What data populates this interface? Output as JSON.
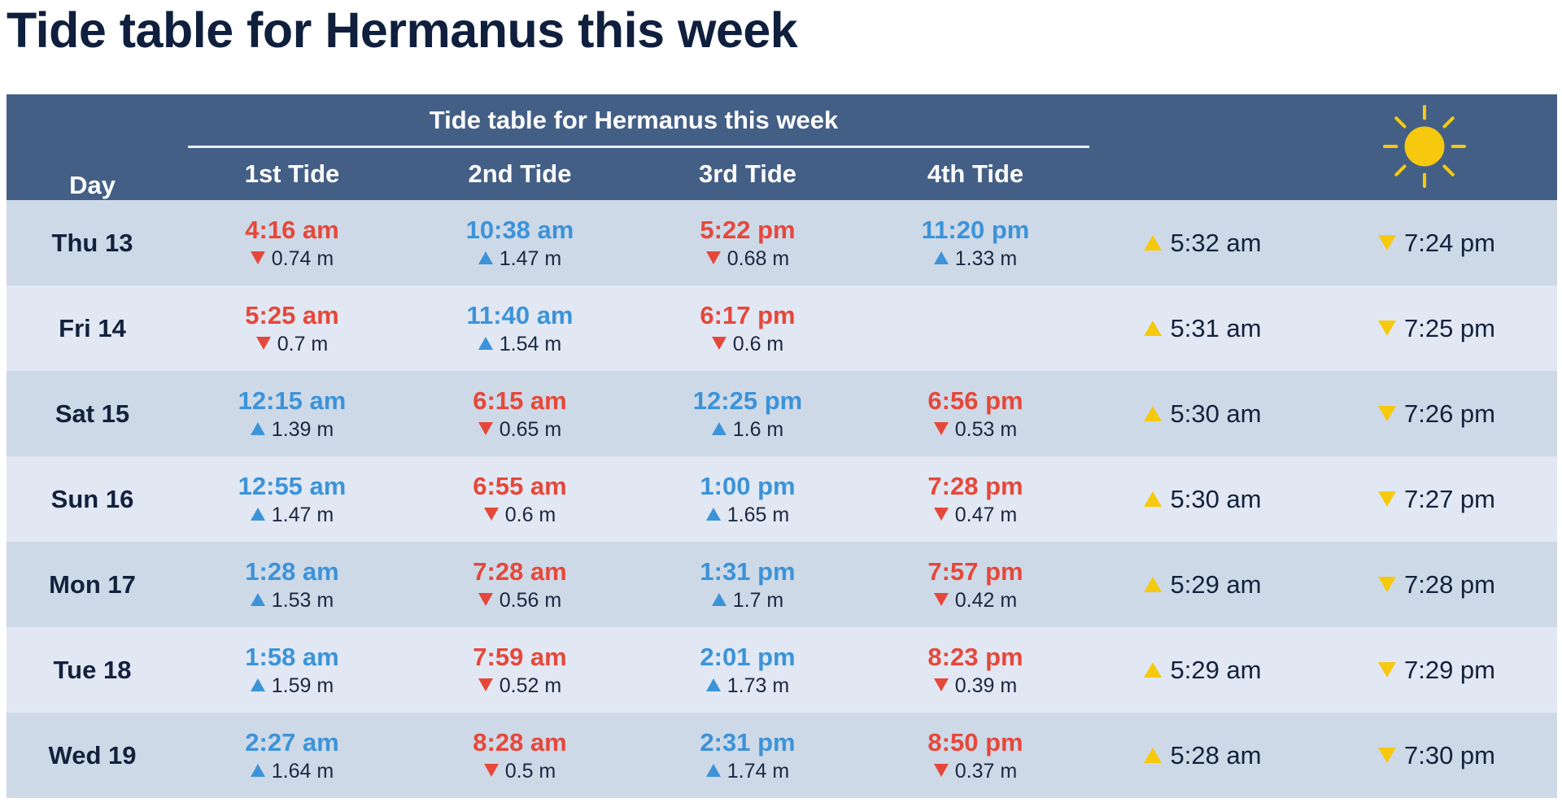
{
  "page": {
    "title": "Tide table for Hermanus this week"
  },
  "table": {
    "caption": "Tide table for Hermanus this week",
    "headers": {
      "day": "Day",
      "tides": [
        "1st Tide",
        "2nd Tide",
        "3rd Tide",
        "4th Tide"
      ]
    },
    "sun_icon": "sun-icon",
    "colors": {
      "header_bg": "#445f86",
      "high_tide": "#3c93d8",
      "low_tide": "#e5483a",
      "sun": "#f6c90e",
      "row_odd": "#ced9e8",
      "row_even": "#e1e8f3"
    },
    "rows": [
      {
        "day": "Thu 13",
        "tides": [
          {
            "time": "4:16 am",
            "height": "0.74 m",
            "type": "low"
          },
          {
            "time": "10:38 am",
            "height": "1.47 m",
            "type": "high"
          },
          {
            "time": "5:22 pm",
            "height": "0.68 m",
            "type": "low"
          },
          {
            "time": "11:20 pm",
            "height": "1.33 m",
            "type": "high"
          }
        ],
        "sunrise": "5:32 am",
        "sunset": "7:24 pm"
      },
      {
        "day": "Fri 14",
        "tides": [
          {
            "time": "5:25 am",
            "height": "0.7 m",
            "type": "low"
          },
          {
            "time": "11:40 am",
            "height": "1.54 m",
            "type": "high"
          },
          {
            "time": "6:17 pm",
            "height": "0.6 m",
            "type": "low"
          },
          null
        ],
        "sunrise": "5:31 am",
        "sunset": "7:25 pm"
      },
      {
        "day": "Sat 15",
        "tides": [
          {
            "time": "12:15 am",
            "height": "1.39 m",
            "type": "high"
          },
          {
            "time": "6:15 am",
            "height": "0.65 m",
            "type": "low"
          },
          {
            "time": "12:25 pm",
            "height": "1.6 m",
            "type": "high"
          },
          {
            "time": "6:56 pm",
            "height": "0.53 m",
            "type": "low"
          }
        ],
        "sunrise": "5:30 am",
        "sunset": "7:26 pm"
      },
      {
        "day": "Sun 16",
        "tides": [
          {
            "time": "12:55 am",
            "height": "1.47 m",
            "type": "high"
          },
          {
            "time": "6:55 am",
            "height": "0.6 m",
            "type": "low"
          },
          {
            "time": "1:00 pm",
            "height": "1.65 m",
            "type": "high"
          },
          {
            "time": "7:28 pm",
            "height": "0.47 m",
            "type": "low"
          }
        ],
        "sunrise": "5:30 am",
        "sunset": "7:27 pm"
      },
      {
        "day": "Mon 17",
        "tides": [
          {
            "time": "1:28 am",
            "height": "1.53 m",
            "type": "high"
          },
          {
            "time": "7:28 am",
            "height": "0.56 m",
            "type": "low"
          },
          {
            "time": "1:31 pm",
            "height": "1.7 m",
            "type": "high"
          },
          {
            "time": "7:57 pm",
            "height": "0.42 m",
            "type": "low"
          }
        ],
        "sunrise": "5:29 am",
        "sunset": "7:28 pm"
      },
      {
        "day": "Tue 18",
        "tides": [
          {
            "time": "1:58 am",
            "height": "1.59 m",
            "type": "high"
          },
          {
            "time": "7:59 am",
            "height": "0.52 m",
            "type": "low"
          },
          {
            "time": "2:01 pm",
            "height": "1.73 m",
            "type": "high"
          },
          {
            "time": "8:23 pm",
            "height": "0.39 m",
            "type": "low"
          }
        ],
        "sunrise": "5:29 am",
        "sunset": "7:29 pm"
      },
      {
        "day": "Wed 19",
        "tides": [
          {
            "time": "2:27 am",
            "height": "1.64 m",
            "type": "high"
          },
          {
            "time": "8:28 am",
            "height": "0.5 m",
            "type": "low"
          },
          {
            "time": "2:31 pm",
            "height": "1.74 m",
            "type": "high"
          },
          {
            "time": "8:50 pm",
            "height": "0.37 m",
            "type": "low"
          }
        ],
        "sunrise": "5:28 am",
        "sunset": "7:30 pm"
      }
    ]
  }
}
